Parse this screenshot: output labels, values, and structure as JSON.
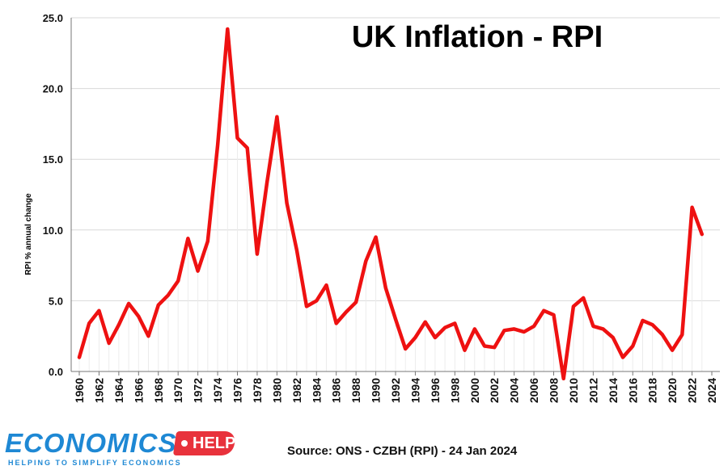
{
  "chart_data": {
    "type": "line",
    "title": "UK Inflation - RPI",
    "ylabel": "RPI % annual change",
    "xlabel": "",
    "ylim": [
      0,
      25
    ],
    "yticks": [
      "0.0",
      "5.0",
      "10.0",
      "15.0",
      "20.0",
      "25.0"
    ],
    "xticks": [
      "1960",
      "1962",
      "1964",
      "1966",
      "1968",
      "1970",
      "1972",
      "1974",
      "1976",
      "1978",
      "1980",
      "1982",
      "1984",
      "1986",
      "1988",
      "1990",
      "1992",
      "1994",
      "1996",
      "1998",
      "2000",
      "2002",
      "2004",
      "2006",
      "2008",
      "2010",
      "2012",
      "2014",
      "2016",
      "2018",
      "2020",
      "2022",
      "2024"
    ],
    "grid": true,
    "series": [
      {
        "color": "#ee1111",
        "x": [
          1960,
          1961,
          1962,
          1963,
          1964,
          1965,
          1966,
          1967,
          1968,
          1969,
          1970,
          1971,
          1972,
          1973,
          1974,
          1975,
          1976,
          1977,
          1978,
          1979,
          1980,
          1981,
          1982,
          1983,
          1984,
          1985,
          1986,
          1987,
          1988,
          1989,
          1990,
          1991,
          1992,
          1993,
          1994,
          1995,
          1996,
          1997,
          1998,
          1999,
          2000,
          2001,
          2002,
          2003,
          2004,
          2005,
          2006,
          2007,
          2008,
          2009,
          2010,
          2011,
          2012,
          2013,
          2014,
          2015,
          2016,
          2017,
          2018,
          2019,
          2020,
          2021,
          2022,
          2023
        ],
        "values": [
          1.0,
          3.4,
          4.3,
          2.0,
          3.3,
          4.8,
          3.9,
          2.5,
          4.7,
          5.4,
          6.4,
          9.4,
          7.1,
          9.2,
          16.0,
          24.2,
          16.5,
          15.8,
          8.3,
          13.4,
          18.0,
          11.9,
          8.6,
          4.6,
          5.0,
          6.1,
          3.4,
          4.2,
          4.9,
          7.8,
          9.5,
          5.9,
          3.7,
          1.6,
          2.4,
          3.5,
          2.4,
          3.1,
          3.4,
          1.5,
          3.0,
          1.8,
          1.7,
          2.9,
          3.0,
          2.8,
          3.2,
          4.3,
          4.0,
          -0.5,
          4.6,
          5.2,
          3.2,
          3.0,
          2.4,
          1.0,
          1.8,
          3.6,
          3.3,
          2.6,
          1.5,
          2.6,
          11.6,
          9.7
        ]
      }
    ]
  },
  "source": "Source: ONS - CZBH (RPI) - 24 Jan 2024",
  "logo": {
    "name": "ECONOMICS",
    "badge": "HELP",
    "tagline": "HELPING TO SIMPLIFY ECONOMICS"
  }
}
